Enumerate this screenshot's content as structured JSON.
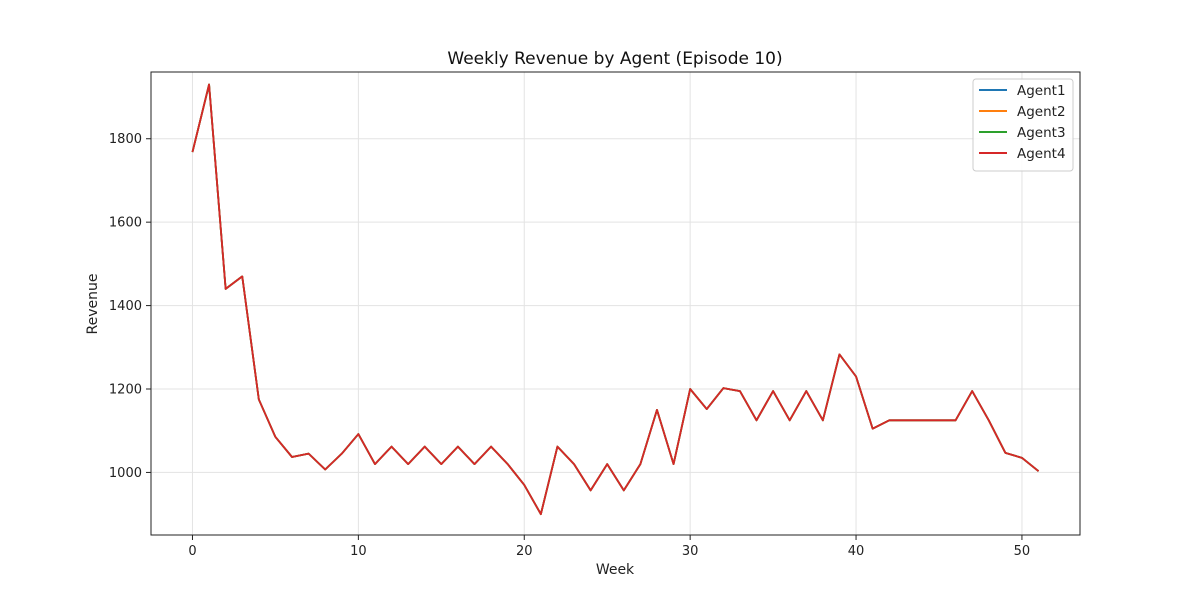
{
  "chart_data": {
    "type": "line",
    "title": "Weekly Revenue by Agent (Episode 10)",
    "xlabel": "Week",
    "ylabel": "Revenue",
    "xlim": [
      -2.5,
      53.5
    ],
    "ylim": [
      850,
      1960
    ],
    "xticks": [
      0,
      10,
      20,
      30,
      40,
      50
    ],
    "yticks": [
      1000,
      1200,
      1400,
      1600,
      1800
    ],
    "grid": true,
    "legend_position": "top-right",
    "x": [
      0,
      1,
      2,
      3,
      4,
      5,
      6,
      7,
      8,
      9,
      10,
      11,
      12,
      13,
      14,
      15,
      16,
      17,
      18,
      19,
      20,
      21,
      22,
      23,
      24,
      25,
      26,
      27,
      28,
      29,
      30,
      31,
      32,
      33,
      34,
      35,
      36,
      37,
      38,
      39,
      40,
      41,
      42,
      43,
      44,
      45,
      46,
      47,
      48,
      49,
      50,
      51
    ],
    "series": [
      {
        "name": "Agent1",
        "color": "#1f77b4",
        "values": [
          1768,
          1930,
          1440,
          1470,
          1175,
          1085,
          1037,
          1045,
          1007,
          1045,
          1092,
          1020,
          1062,
          1020,
          1062,
          1020,
          1062,
          1020,
          1062,
          1020,
          970,
          900,
          1062,
          1020,
          957,
          1020,
          957,
          1020,
          1150,
          1020,
          1200,
          1152,
          1202,
          1195,
          1125,
          1195,
          1125,
          1195,
          1125,
          1283,
          1230,
          1105,
          1125,
          1125,
          1125,
          1125,
          1125,
          1195,
          1125,
          1047,
          1035,
          1003
        ]
      },
      {
        "name": "Agent2",
        "color": "#ff7f0e",
        "values": [
          1768,
          1930,
          1440,
          1470,
          1175,
          1085,
          1037,
          1045,
          1007,
          1045,
          1092,
          1020,
          1062,
          1020,
          1062,
          1020,
          1062,
          1020,
          1062,
          1020,
          970,
          900,
          1062,
          1020,
          957,
          1020,
          957,
          1020,
          1150,
          1020,
          1200,
          1152,
          1202,
          1195,
          1125,
          1195,
          1125,
          1195,
          1125,
          1283,
          1230,
          1105,
          1125,
          1125,
          1125,
          1125,
          1125,
          1195,
          1125,
          1047,
          1035,
          1003
        ]
      },
      {
        "name": "Agent3",
        "color": "#2ca02c",
        "values": [
          1768,
          1930,
          1440,
          1470,
          1175,
          1085,
          1037,
          1045,
          1007,
          1045,
          1092,
          1020,
          1062,
          1020,
          1062,
          1020,
          1062,
          1020,
          1062,
          1020,
          970,
          900,
          1062,
          1020,
          957,
          1020,
          957,
          1020,
          1150,
          1020,
          1200,
          1152,
          1202,
          1195,
          1125,
          1195,
          1125,
          1195,
          1125,
          1283,
          1230,
          1105,
          1125,
          1125,
          1125,
          1125,
          1125,
          1195,
          1125,
          1047,
          1035,
          1003
        ]
      },
      {
        "name": "Agent4",
        "color": "#d62728",
        "values": [
          1768,
          1930,
          1440,
          1470,
          1175,
          1085,
          1037,
          1045,
          1007,
          1045,
          1092,
          1020,
          1062,
          1020,
          1062,
          1020,
          1062,
          1020,
          1062,
          1020,
          970,
          900,
          1062,
          1020,
          957,
          1020,
          957,
          1020,
          1150,
          1020,
          1200,
          1152,
          1202,
          1195,
          1125,
          1195,
          1125,
          1195,
          1125,
          1283,
          1230,
          1105,
          1125,
          1125,
          1125,
          1125,
          1125,
          1195,
          1125,
          1047,
          1035,
          1003
        ]
      }
    ]
  }
}
